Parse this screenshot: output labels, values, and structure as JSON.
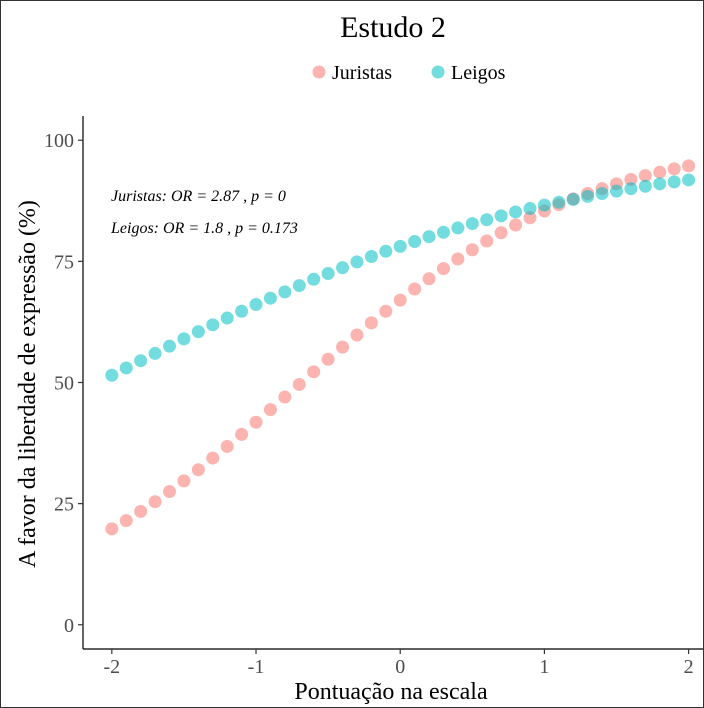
{
  "chart_data": {
    "type": "scatter",
    "title": "Estudo 2",
    "xlabel": "Pontuação na escala",
    "ylabel": "A favor da liberdade de expressão (%)",
    "xlim": [
      -2.2,
      2.1
    ],
    "ylim": [
      -5,
      105
    ],
    "x_ticks": [
      -2,
      -1,
      0,
      1,
      2
    ],
    "x_tick_labels": [
      "-2",
      "-1",
      "0",
      "1",
      "2"
    ],
    "y_ticks": [
      0,
      25,
      50,
      75,
      100
    ],
    "y_tick_labels": [
      "0",
      "25",
      "50",
      "75",
      "100"
    ],
    "grid": false,
    "legend_position": "top",
    "annotations": [
      "Juristas: OR = 2.87 , p = 0",
      "Leigos: OR = 1.8 , p = 0.173"
    ],
    "x": [
      -2.0,
      -1.9,
      -1.8,
      -1.7,
      -1.6,
      -1.5,
      -1.4,
      -1.3,
      -1.2,
      -1.1,
      -1.0,
      -0.9,
      -0.8,
      -0.7,
      -0.6,
      -0.5,
      -0.4,
      -0.3,
      -0.2,
      -0.1,
      0.0,
      0.1,
      0.2,
      0.3,
      0.4,
      0.5,
      0.6,
      0.7,
      0.8,
      0.9,
      1.0,
      1.1,
      1.2,
      1.3,
      1.4,
      1.5,
      1.6,
      1.7,
      1.8,
      1.9,
      2.0
    ],
    "series": [
      {
        "name": "Juristas",
        "color": "#F8766D",
        "values": [
          19.8,
          21.5,
          23.4,
          25.4,
          27.5,
          29.7,
          32.0,
          34.4,
          36.8,
          39.3,
          41.8,
          44.4,
          47.0,
          49.6,
          52.2,
          54.8,
          57.3,
          59.8,
          62.3,
          64.7,
          67.0,
          69.3,
          71.4,
          73.5,
          75.5,
          77.4,
          79.2,
          80.9,
          82.5,
          84.0,
          85.4,
          86.7,
          87.9,
          89.0,
          90.0,
          91.0,
          91.9,
          92.7,
          93.4,
          94.1,
          94.7
        ]
      },
      {
        "name": "Leigos",
        "color": "#00BFC4",
        "values": [
          51.5,
          53.0,
          54.5,
          56.0,
          57.5,
          59.0,
          60.5,
          61.9,
          63.3,
          64.7,
          66.1,
          67.4,
          68.7,
          70.0,
          71.3,
          72.5,
          73.7,
          74.9,
          76.0,
          77.1,
          78.1,
          79.1,
          80.1,
          81.0,
          81.9,
          82.8,
          83.6,
          84.4,
          85.2,
          85.9,
          86.6,
          87.2,
          87.8,
          88.4,
          89.0,
          89.5,
          90.0,
          90.5,
          91.0,
          91.4,
          91.8
        ]
      }
    ]
  }
}
